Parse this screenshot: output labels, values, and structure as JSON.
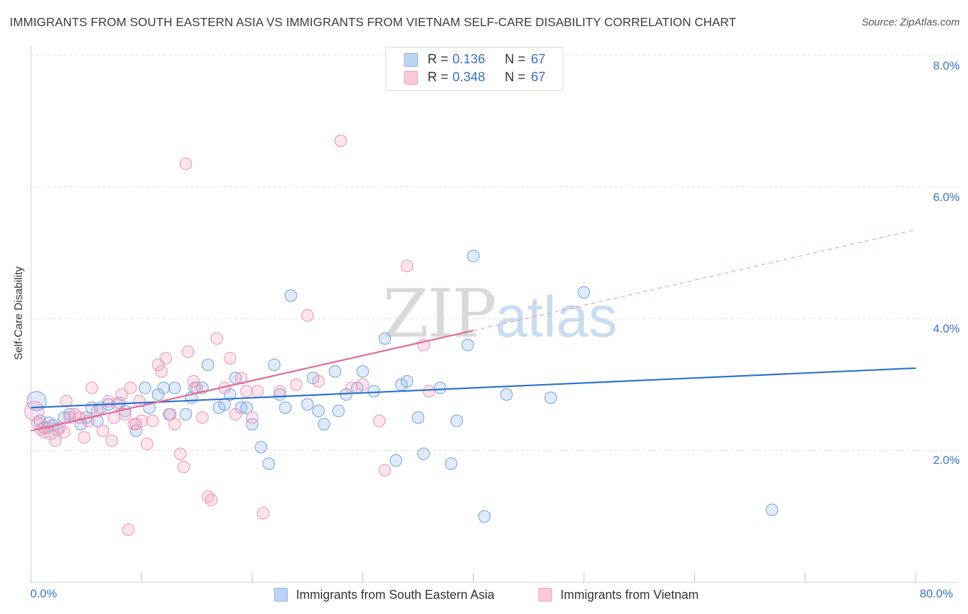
{
  "title": "IMMIGRANTS FROM SOUTH EASTERN ASIA VS IMMIGRANTS FROM VIETNAM SELF-CARE DISABILITY CORRELATION CHART",
  "source": "Source: ZipAtlas.com",
  "watermark": {
    "zip": "ZIP",
    "atlas": "atlas"
  },
  "colors": {
    "blue": "#8fb4e8",
    "blue_line": "#2c6fd0",
    "pink": "#f3a3bf",
    "pink_line": "#e06897",
    "axis_text": "#3a6fc5"
  },
  "legend": {
    "rows": [
      {
        "r_label": "R =",
        "r_value": "0.136",
        "n_label": "N =",
        "n_value": "67"
      },
      {
        "r_label": "R =",
        "r_value": "0.348",
        "n_label": "N =",
        "n_value": "67"
      }
    ]
  },
  "chart_data": {
    "type": "scatter",
    "title": "IMMIGRANTS FROM SOUTH EASTERN ASIA VS IMMIGRANTS FROM VIETNAM SELF-CARE DISABILITY CORRELATION CHART",
    "xlabel": "",
    "ylabel": "Self-Care Disability",
    "xlim": [
      0,
      80
    ],
    "ylim": [
      0,
      8.0
    ],
    "x_tick_labels": [
      "0.0%",
      "80.0%"
    ],
    "y_tick_labels": [
      "2.0%",
      "4.0%",
      "6.0%",
      "8.0%"
    ],
    "grid": "horizontal dashed",
    "legend_position": "top-center",
    "series": [
      {
        "name": "Immigrants from South Eastern Asia",
        "color": "#8fb4e8",
        "r": 0.136,
        "n": 67,
        "trend": {
          "x0": 0,
          "y0": 2.65,
          "x1": 80,
          "y1": 3.25
        },
        "points": [
          [
            0.5,
            2.75
          ],
          [
            0.8,
            2.45
          ],
          [
            1.2,
            2.35
          ],
          [
            1.6,
            2.42
          ],
          [
            2.0,
            2.38
          ],
          [
            2.4,
            2.32
          ],
          [
            3.0,
            2.5
          ],
          [
            3.5,
            2.55
          ],
          [
            4.5,
            2.4
          ],
          [
            5.0,
            2.5
          ],
          [
            5.5,
            2.65
          ],
          [
            6.3,
            2.65
          ],
          [
            7.0,
            2.7
          ],
          [
            8.0,
            2.72
          ],
          [
            8.5,
            2.6
          ],
          [
            9.5,
            2.3
          ],
          [
            10.3,
            2.95
          ],
          [
            10.7,
            2.65
          ],
          [
            11.5,
            2.85
          ],
          [
            12.0,
            2.95
          ],
          [
            12.5,
            2.55
          ],
          [
            13.0,
            2.95
          ],
          [
            14.0,
            2.55
          ],
          [
            14.5,
            2.8
          ],
          [
            14.8,
            2.95
          ],
          [
            15.5,
            2.95
          ],
          [
            16.0,
            3.3
          ],
          [
            17.0,
            2.65
          ],
          [
            17.5,
            2.7
          ],
          [
            18.0,
            2.85
          ],
          [
            18.5,
            3.1
          ],
          [
            19.0,
            2.65
          ],
          [
            19.5,
            2.65
          ],
          [
            20.0,
            2.4
          ],
          [
            20.8,
            2.05
          ],
          [
            21.5,
            1.8
          ],
          [
            22.0,
            3.3
          ],
          [
            23.0,
            2.65
          ],
          [
            23.5,
            4.35
          ],
          [
            25.0,
            2.7
          ],
          [
            25.5,
            3.1
          ],
          [
            26.0,
            2.6
          ],
          [
            26.5,
            2.4
          ],
          [
            27.5,
            3.2
          ],
          [
            27.8,
            2.6
          ],
          [
            28.5,
            2.85
          ],
          [
            29.5,
            2.95
          ],
          [
            30.0,
            3.2
          ],
          [
            31.0,
            2.9
          ],
          [
            32.0,
            3.7
          ],
          [
            33.0,
            1.85
          ],
          [
            33.5,
            3.0
          ],
          [
            34.0,
            3.05
          ],
          [
            35.0,
            2.5
          ],
          [
            35.5,
            1.95
          ],
          [
            37.0,
            2.95
          ],
          [
            38.0,
            1.8
          ],
          [
            38.5,
            2.45
          ],
          [
            39.5,
            3.6
          ],
          [
            40.0,
            4.95
          ],
          [
            41.0,
            1.0
          ],
          [
            43.0,
            2.85
          ],
          [
            47.0,
            2.8
          ],
          [
            50.0,
            4.4
          ],
          [
            67.0,
            1.1
          ],
          [
            22.5,
            2.85
          ],
          [
            6.0,
            2.45
          ]
        ]
      },
      {
        "name": "Immigrants from Vietnam",
        "color": "#f3a3bf",
        "r": 0.348,
        "n": 67,
        "trend": {
          "x0": 0,
          "y0": 2.3,
          "x1": 40,
          "y1": 3.82
        },
        "trend_extension": {
          "x0": 40,
          "y0": 3.82,
          "x1": 80,
          "y1": 5.35
        },
        "points": [
          [
            0.3,
            2.6
          ],
          [
            0.6,
            2.42
          ],
          [
            0.9,
            2.32
          ],
          [
            1.2,
            2.28
          ],
          [
            1.5,
            2.35
          ],
          [
            1.8,
            2.25
          ],
          [
            2.2,
            2.15
          ],
          [
            2.6,
            2.35
          ],
          [
            3.0,
            2.28
          ],
          [
            3.2,
            2.75
          ],
          [
            3.5,
            2.5
          ],
          [
            4.0,
            2.55
          ],
          [
            4.4,
            2.5
          ],
          [
            4.8,
            2.2
          ],
          [
            5.2,
            2.45
          ],
          [
            5.5,
            2.95
          ],
          [
            6.0,
            2.6
          ],
          [
            6.5,
            2.3
          ],
          [
            7.0,
            2.75
          ],
          [
            7.3,
            2.15
          ],
          [
            7.8,
            2.7
          ],
          [
            8.2,
            2.85
          ],
          [
            8.5,
            2.55
          ],
          [
            9.0,
            2.95
          ],
          [
            9.3,
            2.4
          ],
          [
            9.8,
            2.75
          ],
          [
            10.0,
            2.45
          ],
          [
            10.5,
            2.1
          ],
          [
            11.0,
            2.45
          ],
          [
            11.5,
            3.3
          ],
          [
            11.8,
            3.2
          ],
          [
            12.2,
            3.4
          ],
          [
            12.6,
            2.55
          ],
          [
            13.0,
            2.4
          ],
          [
            13.5,
            1.95
          ],
          [
            13.8,
            1.75
          ],
          [
            14.2,
            3.5
          ],
          [
            14.7,
            3.05
          ],
          [
            15.0,
            2.95
          ],
          [
            15.5,
            2.5
          ],
          [
            16.0,
            1.3
          ],
          [
            16.3,
            1.25
          ],
          [
            16.8,
            3.7
          ],
          [
            17.5,
            2.95
          ],
          [
            18.0,
            3.4
          ],
          [
            18.5,
            2.55
          ],
          [
            19.0,
            3.1
          ],
          [
            19.5,
            2.9
          ],
          [
            20.0,
            2.5
          ],
          [
            20.5,
            2.9
          ],
          [
            21.0,
            1.05
          ],
          [
            22.5,
            2.9
          ],
          [
            24.0,
            3.0
          ],
          [
            25.0,
            4.05
          ],
          [
            26.0,
            3.05
          ],
          [
            28.0,
            6.7
          ],
          [
            30.0,
            3.0
          ],
          [
            31.5,
            2.45
          ],
          [
            32.0,
            1.7
          ],
          [
            34.0,
            4.8
          ],
          [
            35.5,
            3.6
          ],
          [
            36.0,
            2.9
          ],
          [
            14.0,
            6.35
          ],
          [
            8.8,
            0.8
          ],
          [
            29.0,
            2.95
          ],
          [
            9.5,
            2.4
          ],
          [
            7.5,
            2.5
          ]
        ]
      }
    ]
  }
}
